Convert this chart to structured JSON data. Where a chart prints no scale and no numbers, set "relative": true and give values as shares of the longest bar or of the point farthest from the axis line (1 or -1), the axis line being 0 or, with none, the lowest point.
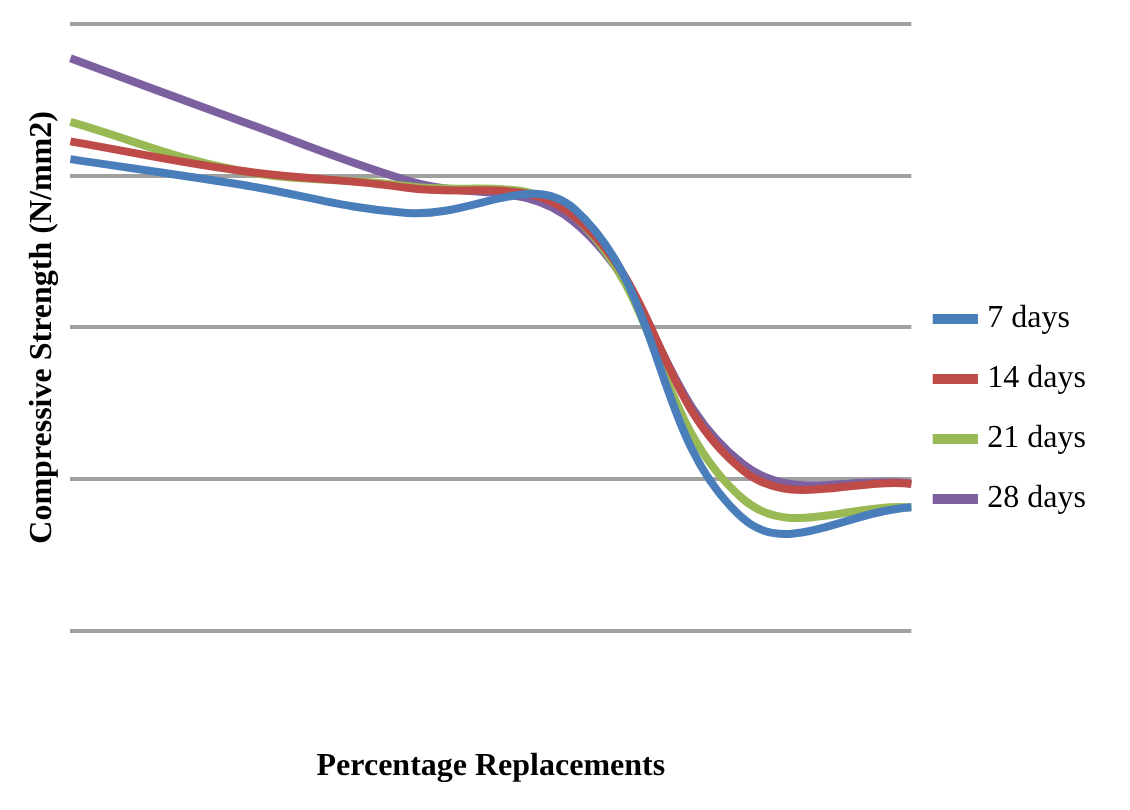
{
  "chart_data": {
    "type": "line",
    "xlabel": "Percentage Replacements",
    "ylabel": "Compressive Strength (N/mm2)",
    "relative": true,
    "categories": [
      null,
      null,
      null,
      null,
      null,
      null
    ],
    "grid": "y",
    "legend": "right",
    "marker": "none",
    "series": [
      {
        "name": "7 days",
        "color": "#4a7ebb",
        "values": [
          0.824,
          0.78,
          0.73,
          0.736,
          0.196,
          0.216
        ]
      },
      {
        "name": "14 days",
        "color": "#be4b48",
        "values": [
          0.855,
          0.804,
          0.774,
          0.723,
          0.28,
          0.257
        ]
      },
      {
        "name": "21 days",
        "color": "#98b954",
        "values": [
          0.889,
          0.804,
          0.777,
          0.723,
          0.23,
          0.216
        ]
      },
      {
        "name": "28 days",
        "color": "#7d60a0",
        "values": [
          1,
          0.892,
          0.787,
          0.713,
          0.291,
          0.257
        ]
      }
    ]
  }
}
